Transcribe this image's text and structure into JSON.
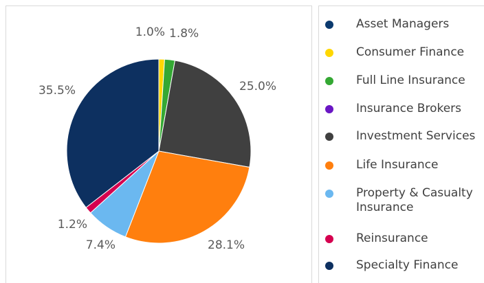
{
  "chart_data": {
    "type": "pie",
    "categories": [
      "Asset Managers",
      "Consumer Finance",
      "Full Line Insurance",
      "Insurance Brokers",
      "Investment Services",
      "Life Insurance",
      "Property & Casualty Insurance",
      "Reinsurance",
      "Specialty Finance"
    ],
    "values": [
      0,
      1.0,
      1.8,
      0,
      25.0,
      28.1,
      7.4,
      1.2,
      35.5
    ],
    "value_labels": [
      null,
      "1.0%",
      "1.8%",
      null,
      "25.0%",
      "28.1%",
      "7.4%",
      "1.2%",
      "35.5%"
    ],
    "colors": [
      "#0b3a6e",
      "#ffd700",
      "#34a833",
      "#6a16c4",
      "#404040",
      "#ff7f0e",
      "#6bb8f0",
      "#d5004f",
      "#0d3060"
    ],
    "legend": "right"
  }
}
